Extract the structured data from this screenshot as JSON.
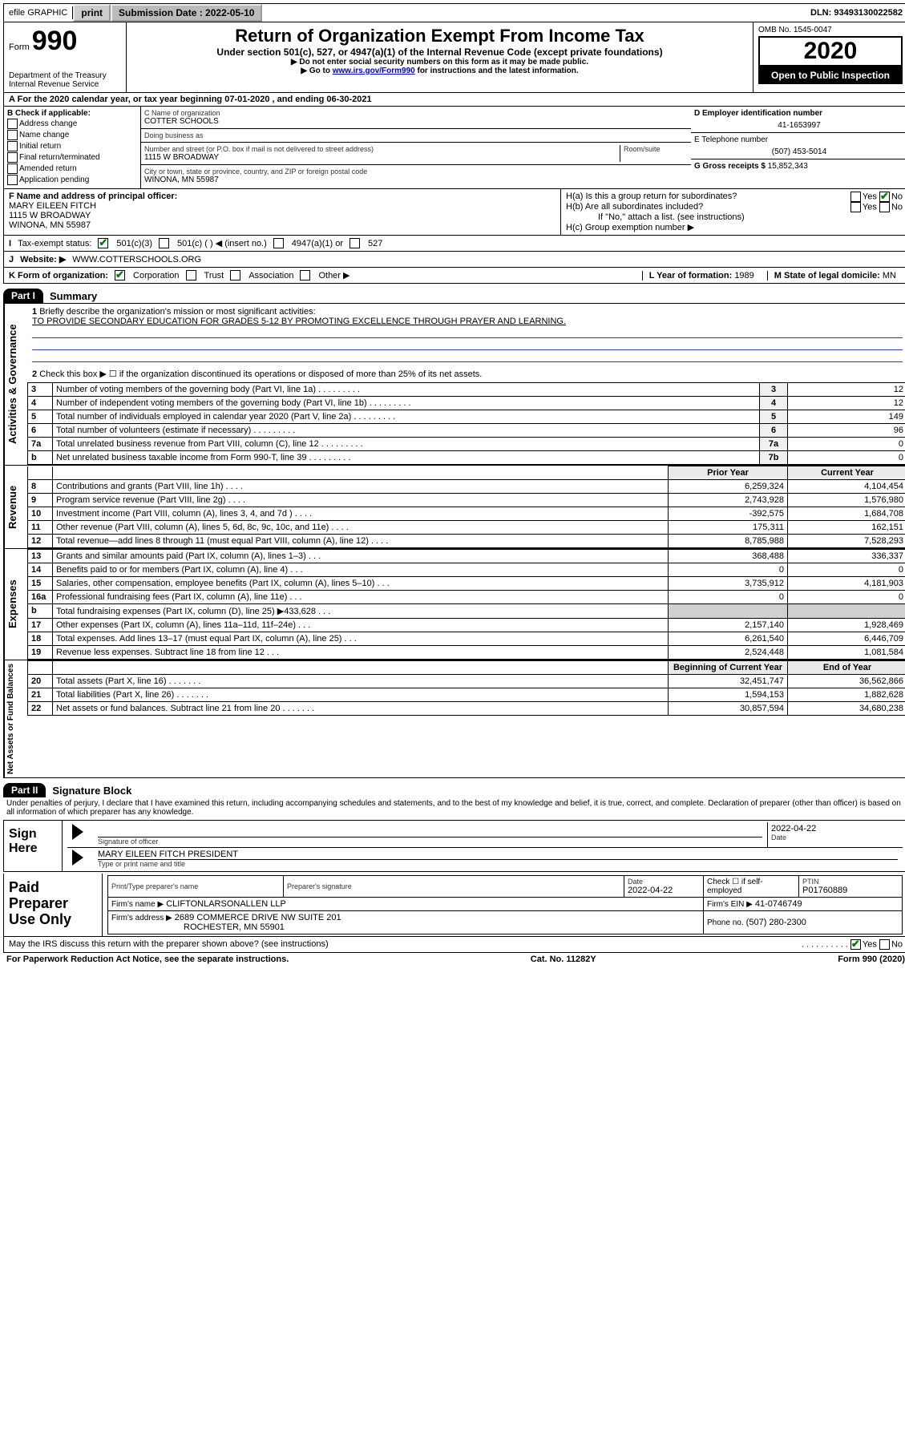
{
  "topbar": {
    "efile": "efile GRAPHIC",
    "print": "print",
    "subdate_label": "Submission Date : 2022-05-10",
    "dln": "DLN: 93493130022582"
  },
  "header": {
    "form_prefix": "Form",
    "form_num": "990",
    "dept1": "Department of the Treasury",
    "dept2": "Internal Revenue Service",
    "title": "Return of Organization Exempt From Income Tax",
    "sub1": "Under section 501(c), 527, or 4947(a)(1) of the Internal Revenue Code (except private foundations)",
    "sub2": "Do not enter social security numbers on this form as it may be made public.",
    "sub3_pre": "Go to ",
    "sub3_link": "www.irs.gov/Form990",
    "sub3_post": " for instructions and the latest information.",
    "omb": "OMB No. 1545-0047",
    "year": "2020",
    "open": "Open to Public Inspection"
  },
  "periodA": "For the 2020 calendar year, or tax year beginning 07-01-2020   , and ending 06-30-2021",
  "boxB": {
    "title": "B Check if applicable:",
    "opts": [
      "Address change",
      "Name change",
      "Initial return",
      "Final return/terminated",
      "Amended return",
      "Application pending"
    ]
  },
  "boxC": {
    "name_lbl": "C Name of organization",
    "name": "COTTER SCHOOLS",
    "dba_lbl": "Doing business as",
    "dba": "",
    "addr_lbl": "Number and street (or P.O. box if mail is not delivered to street address)",
    "room_lbl": "Room/suite",
    "addr": "1115 W BROADWAY",
    "city_lbl": "City or town, state or province, country, and ZIP or foreign postal code",
    "city": "WINONA, MN  55987"
  },
  "boxD": {
    "lbl": "D Employer identification number",
    "val": "41-1653997"
  },
  "boxE": {
    "lbl": "E Telephone number",
    "val": "(507) 453-5014"
  },
  "boxG": {
    "lbl": "G Gross receipts $",
    "val": "15,852,343"
  },
  "boxF": {
    "lbl": "F Name and address of principal officer:",
    "l1": "MARY EILEEN FITCH",
    "l2": "1115 W BROADWAY",
    "l3": "WINONA, MN  55987"
  },
  "boxH": {
    "a": "H(a)  Is this a group return for subordinates?",
    "b": "H(b)  Are all subordinates included?",
    "b2": "If \"No,\" attach a list. (see instructions)",
    "c": "H(c)  Group exemption number ▶"
  },
  "boxI": {
    "lbl": "Tax-exempt status:",
    "o1": "501(c)(3)",
    "o2": "501(c) (   ) ◀ (insert no.)",
    "o3": "4947(a)(1) or",
    "o4": "527"
  },
  "boxJ": {
    "lbl": "Website: ▶",
    "val": "WWW.COTTERSCHOOLS.ORG"
  },
  "boxK": {
    "lbl": "K Form of organization:",
    "o1": "Corporation",
    "o2": "Trust",
    "o3": "Association",
    "o4": "Other ▶"
  },
  "boxL": {
    "lbl": "L Year of formation:",
    "val": "1989"
  },
  "boxM": {
    "lbl": "M State of legal domicile:",
    "val": "MN"
  },
  "part1": {
    "tab": "Part I",
    "title": "Summary",
    "q1": "Briefly describe the organization's mission or most significant activities:",
    "q1v": "TO PROVIDE SECONDARY EDUCATION FOR GRADES 5-12 BY PROMOTING EXCELLENCE THROUGH PRAYER AND LEARNING.",
    "q2": "Check this box ▶ ☐  if the organization discontinued its operations or disposed of more than 25% of its net assets.",
    "rows_gov": [
      {
        "n": "3",
        "t": "Number of voting members of the governing body (Part VI, line 1a)",
        "b": "3",
        "v": "12"
      },
      {
        "n": "4",
        "t": "Number of independent voting members of the governing body (Part VI, line 1b)",
        "b": "4",
        "v": "12"
      },
      {
        "n": "5",
        "t": "Total number of individuals employed in calendar year 2020 (Part V, line 2a)",
        "b": "5",
        "v": "149"
      },
      {
        "n": "6",
        "t": "Total number of volunteers (estimate if necessary)",
        "b": "6",
        "v": "96"
      },
      {
        "n": "7a",
        "t": "Total unrelated business revenue from Part VIII, column (C), line 12",
        "b": "7a",
        "v": "0"
      },
      {
        "n": "b",
        "t": "Net unrelated business taxable income from Form 990-T, line 39",
        "b": "7b",
        "v": "0"
      }
    ],
    "col_prior": "Prior Year",
    "col_curr": "Current Year",
    "rows_rev": [
      {
        "n": "8",
        "t": "Contributions and grants (Part VIII, line 1h)",
        "p": "6,259,324",
        "c": "4,104,454"
      },
      {
        "n": "9",
        "t": "Program service revenue (Part VIII, line 2g)",
        "p": "2,743,928",
        "c": "1,576,980"
      },
      {
        "n": "10",
        "t": "Investment income (Part VIII, column (A), lines 3, 4, and 7d )",
        "p": "-392,575",
        "c": "1,684,708"
      },
      {
        "n": "11",
        "t": "Other revenue (Part VIII, column (A), lines 5, 6d, 8c, 9c, 10c, and 11e)",
        "p": "175,311",
        "c": "162,151"
      },
      {
        "n": "12",
        "t": "Total revenue—add lines 8 through 11 (must equal Part VIII, column (A), line 12)",
        "p": "8,785,988",
        "c": "7,528,293"
      }
    ],
    "rows_exp": [
      {
        "n": "13",
        "t": "Grants and similar amounts paid (Part IX, column (A), lines 1–3)",
        "p": "368,488",
        "c": "336,337"
      },
      {
        "n": "14",
        "t": "Benefits paid to or for members (Part IX, column (A), line 4)",
        "p": "0",
        "c": "0"
      },
      {
        "n": "15",
        "t": "Salaries, other compensation, employee benefits (Part IX, column (A), lines 5–10)",
        "p": "3,735,912",
        "c": "4,181,903"
      },
      {
        "n": "16a",
        "t": "Professional fundraising fees (Part IX, column (A), line 11e)",
        "p": "0",
        "c": "0"
      },
      {
        "n": "b",
        "t": "Total fundraising expenses (Part IX, column (D), line 25) ▶433,628",
        "p": "",
        "c": ""
      },
      {
        "n": "17",
        "t": "Other expenses (Part IX, column (A), lines 11a–11d, 11f–24e)",
        "p": "2,157,140",
        "c": "1,928,469"
      },
      {
        "n": "18",
        "t": "Total expenses. Add lines 13–17 (must equal Part IX, column (A), line 25)",
        "p": "6,261,540",
        "c": "6,446,709"
      },
      {
        "n": "19",
        "t": "Revenue less expenses. Subtract line 18 from line 12",
        "p": "2,524,448",
        "c": "1,081,584"
      }
    ],
    "col_begin": "Beginning of Current Year",
    "col_end": "End of Year",
    "rows_net": [
      {
        "n": "20",
        "t": "Total assets (Part X, line 16)",
        "p": "32,451,747",
        "c": "36,562,866"
      },
      {
        "n": "21",
        "t": "Total liabilities (Part X, line 26)",
        "p": "1,594,153",
        "c": "1,882,628"
      },
      {
        "n": "22",
        "t": "Net assets or fund balances. Subtract line 21 from line 20",
        "p": "30,857,594",
        "c": "34,680,238"
      }
    ],
    "vlabels": {
      "gov": "Activities & Governance",
      "rev": "Revenue",
      "exp": "Expenses",
      "net": "Net Assets or Fund Balances"
    }
  },
  "part2": {
    "tab": "Part II",
    "title": "Signature Block",
    "decl": "Under penalties of perjury, I declare that I have examined this return, including accompanying schedules and statements, and to the best of my knowledge and belief, it is true, correct, and complete. Declaration of preparer (other than officer) is based on all information of which preparer has any knowledge.",
    "sign_here": "Sign Here",
    "sig_lbl": "Signature of officer",
    "date_lbl": "Date",
    "date_val": "2022-04-22",
    "name_lbl": "Type or print name and title",
    "name_val": "MARY EILEEN FITCH  PRESIDENT",
    "paid": "Paid Preparer Use Only",
    "pp_name_lbl": "Print/Type preparer's name",
    "pp_sig_lbl": "Preparer's signature",
    "pp_date_lbl": "Date",
    "pp_date_val": "2022-04-22",
    "pp_self": "Check ☐ if self-employed",
    "pp_ptin_lbl": "PTIN",
    "pp_ptin": "P01760889",
    "firm_name_lbl": "Firm's name    ▶",
    "firm_name": "CLIFTONLARSONALLEN LLP",
    "firm_ein_lbl": "Firm's EIN ▶",
    "firm_ein": "41-0746749",
    "firm_addr_lbl": "Firm's address ▶",
    "firm_addr1": "2689 COMMERCE DRIVE NW SUITE 201",
    "firm_addr2": "ROCHESTER, MN  55901",
    "firm_phone_lbl": "Phone no.",
    "firm_phone": "(507) 280-2300",
    "discuss": "May the IRS discuss this return with the preparer shown above? (see instructions)",
    "yes": "Yes",
    "no": "No"
  },
  "footer": {
    "l": "For Paperwork Reduction Act Notice, see the separate instructions.",
    "m": "Cat. No. 11282Y",
    "r": "Form 990 (2020)"
  }
}
